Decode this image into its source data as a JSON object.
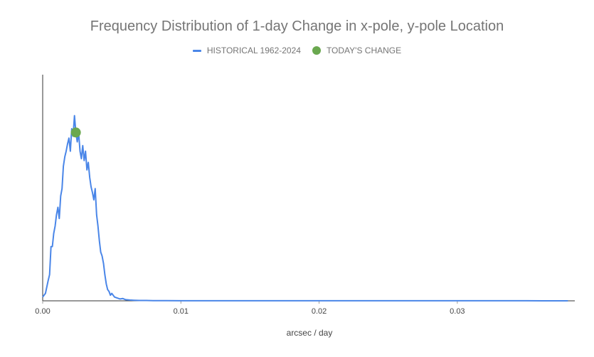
{
  "chart_data": {
    "type": "line",
    "title": "Frequency Distribution of 1-day Change in x-pole, y-pole Location",
    "xlabel": "arcsec / day",
    "ylabel": "",
    "xlim": [
      0,
      0.0385
    ],
    "ylim": [
      0,
      1.0
    ],
    "x_ticks": [
      0.0,
      0.01,
      0.02,
      0.03
    ],
    "x_tick_labels": [
      "0.00",
      "0.01",
      "0.02",
      "0.03"
    ],
    "legend_position": "top-center",
    "series": [
      {
        "name": "HISTORICAL 1962-2024",
        "color": "#4a86e8",
        "x": [
          0.0,
          0.0002,
          0.0004,
          0.0005,
          0.0006,
          0.0007,
          0.0008,
          0.0009,
          0.001,
          0.0011,
          0.0012,
          0.0013,
          0.0014,
          0.0015,
          0.0016,
          0.0017,
          0.0018,
          0.0019,
          0.002,
          0.0021,
          0.0022,
          0.0023,
          0.0024,
          0.0025,
          0.0026,
          0.0027,
          0.0028,
          0.0029,
          0.003,
          0.0031,
          0.0032,
          0.0033,
          0.0034,
          0.0035,
          0.0036,
          0.0037,
          0.0038,
          0.0039,
          0.004,
          0.0041,
          0.0042,
          0.0043,
          0.0044,
          0.0045,
          0.0046,
          0.0047,
          0.0048,
          0.0049,
          0.005,
          0.0052,
          0.0054,
          0.0056,
          0.0058,
          0.006,
          0.0063,
          0.0066,
          0.007,
          0.0075,
          0.008,
          0.009,
          0.01,
          0.015,
          0.02,
          0.025,
          0.03,
          0.035,
          0.038
        ],
        "values": [
          0.02,
          0.04,
          0.11,
          0.14,
          0.29,
          0.29,
          0.36,
          0.4,
          0.46,
          0.5,
          0.44,
          0.56,
          0.6,
          0.72,
          0.77,
          0.8,
          0.84,
          0.87,
          0.8,
          0.92,
          0.88,
          0.99,
          0.9,
          0.85,
          0.9,
          0.8,
          0.76,
          0.83,
          0.75,
          0.8,
          0.7,
          0.74,
          0.66,
          0.61,
          0.58,
          0.54,
          0.6,
          0.46,
          0.4,
          0.32,
          0.26,
          0.24,
          0.2,
          0.14,
          0.09,
          0.06,
          0.05,
          0.03,
          0.04,
          0.02,
          0.015,
          0.01,
          0.012,
          0.006,
          0.004,
          0.003,
          0.002,
          0.002,
          0.001,
          0.001,
          0.0005,
          0.0005,
          0.0003,
          0.0003,
          0.0002,
          0.0002,
          0.0001
        ]
      },
      {
        "name": "TODAY'S CHANGE",
        "color": "#6aa84f",
        "x": [
          0.0024
        ],
        "values": [
          0.9
        ]
      }
    ]
  }
}
